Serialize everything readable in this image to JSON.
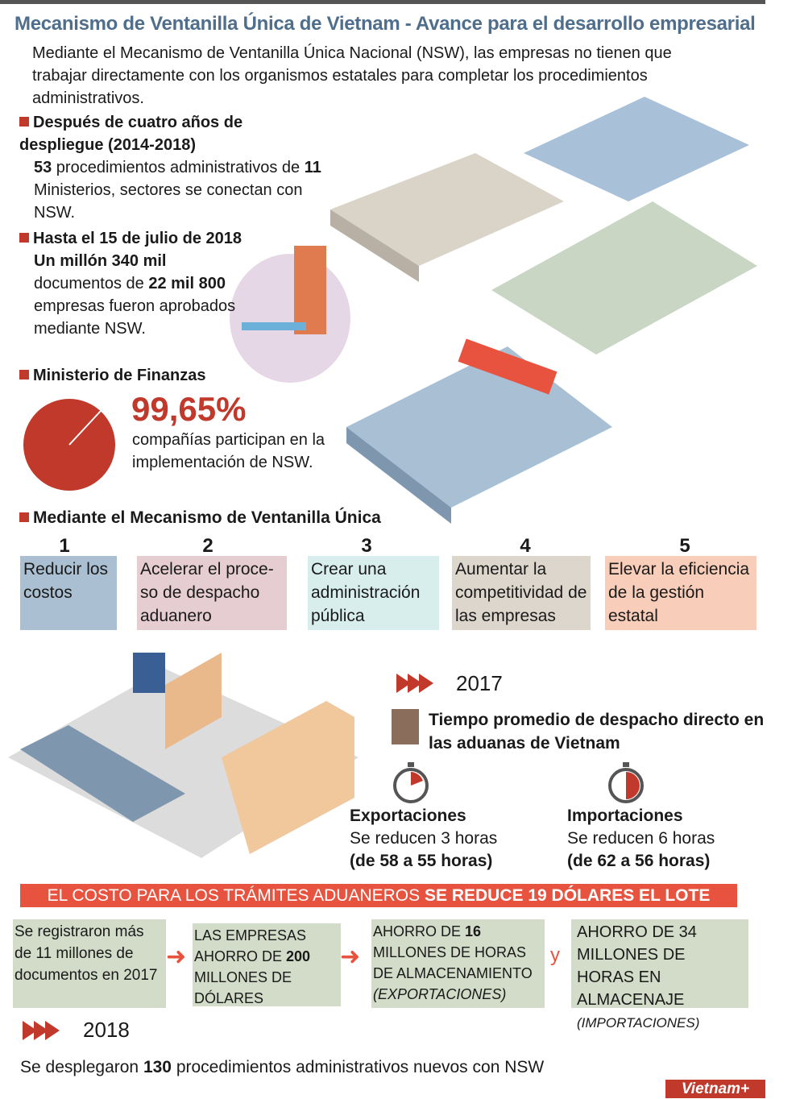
{
  "title": "Mecanismo de Ventanilla Única de Vietnam - Avance para el desarrollo empresarial",
  "intro": "Mediante el Mecanismo de Ventanilla Única Nacional (NSW), las empresas no tienen que trabajar directamente con los organismos estatales para completar los procedimientos administrativos.",
  "s1": {
    "heading": "Después de cuatro años de despliegue (2014-2018)",
    "n1": "53",
    "t1": " procedimientos administrativos de ",
    "n2": "11",
    "t2": " Ministerios, sectores se conectan con NSW."
  },
  "s2": {
    "heading": "Hasta el 15 de julio de 2018",
    "n1": "Un millón 340 mil",
    "t1": " documentos de ",
    "n2": "22 mil 800",
    "t2": "  empresas fueron aprobados mediante NSW."
  },
  "s3": {
    "heading": "Ministerio de Finanzas",
    "percent": "99,65%",
    "percent_value": 99.65,
    "text": "compañías participan en la implementación de NSW.",
    "pie_color": "#c0392b"
  },
  "s4": {
    "heading": "Mediante el Mecanismo de Ventanilla Única",
    "items": [
      {
        "num": "1",
        "text": "Reducir los costos",
        "color": "#aabfd1"
      },
      {
        "num": "2",
        "text": "Acelerar el proce-so de despacho aduanero",
        "color": "#e6cdd2"
      },
      {
        "num": "3",
        "text": "Crear una administración pública",
        "color": "#d8eeed"
      },
      {
        "num": "4",
        "text": "Aumentar la competitividad de las empresas",
        "color": "#ddd6cc"
      },
      {
        "num": "5",
        "text": "Elevar la eficiencia de la gestión estatal",
        "color": "#f8cdb9"
      }
    ]
  },
  "y2017": {
    "year": "2017",
    "heading": "Tiempo promedio de despacho directo en las aduanas de Vietnam",
    "exp": {
      "label": "Exportaciones",
      "line1": "Se reducen 3 horas",
      "line2": "(de 58 a 55 horas)"
    },
    "imp": {
      "label": "Importaciones",
      "line1": "Se reducen 6 horas",
      "line2": "(de 62 a 56 horas)"
    }
  },
  "banner": {
    "normal": "EL COSTO PARA LOS TRÁMITES ADUANEROS ",
    "bold": "SE REDUCE 19 DÓLARES EL LOTE",
    "color": "#e8533f"
  },
  "boxes": {
    "b1": "Se registraron más de 11 millones de documentos en 2017",
    "b2a": "LAS EMPRESAS AHORRO DE ",
    "b2n": "200",
    "b2b": " MILLONES DE DÓLARES",
    "b3a": "AHORRO DE ",
    "b3n": "16",
    "b3b": " MILLONES DE HORAS DE ALMACENAMIENTO",
    "b3c": "(EXPORTACIONES)",
    "and": "y",
    "b4a": "AHORRO DE 34 MILLONES DE HORAS EN ALMACENAJE",
    "b4c": "(IMPORTACIONES)"
  },
  "y2018": {
    "year": "2018",
    "t1": "Se desplegaron ",
    "n": "130",
    "t2": " procedimientos administrativos nuevos con NSW"
  },
  "logo": "Vietnam+"
}
